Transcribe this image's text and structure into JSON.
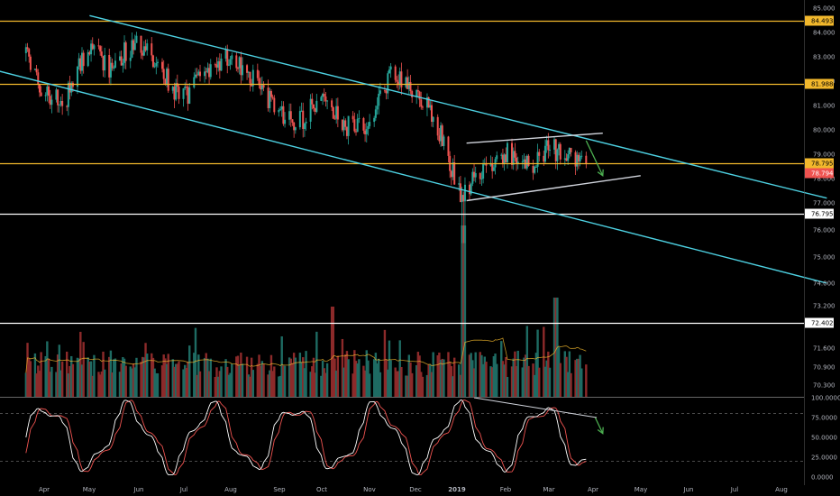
{
  "chart_data": {
    "type": "candlestick",
    "x_axis": {
      "labels": [
        "Apr",
        "May",
        "Jun",
        "Jul",
        "Aug",
        "Sep",
        "Oct",
        "Nov",
        "Dec",
        "2019",
        "Feb",
        "Mar",
        "Apr",
        "May",
        "Jun",
        "Jul",
        "Aug"
      ]
    },
    "price_axis": {
      "ticks": [
        "85.000",
        "84.000",
        "83.000",
        "82.000",
        "81.000",
        "80.000",
        "79.000",
        "78.000",
        "77.000",
        "76.000",
        "75.000",
        "74.000",
        "73.200",
        "71.600",
        "70.900",
        "70.300"
      ],
      "ylim": [
        70.3,
        85.0
      ]
    },
    "oscillator_axis": {
      "ticks": [
        "100.0000",
        "75.0000",
        "50.0000",
        "25.0000",
        "0.0000"
      ],
      "ylim": [
        0,
        100
      ]
    },
    "horizontal_levels": [
      {
        "label": "84.493",
        "value": 84.493,
        "color": "#f2b82c"
      },
      {
        "label": "81.988",
        "value": 81.988,
        "color": "#f2b82c"
      },
      {
        "label": "78.795",
        "value": 78.795,
        "color": "#f2b82c"
      },
      {
        "label": "76.795",
        "value": 76.795,
        "color": "#ffffff"
      },
      {
        "label": "72.402",
        "value": 72.402,
        "color": "#ffffff"
      }
    ],
    "last_price_tag": {
      "label": "78.794",
      "color": "#ef5350"
    },
    "price_anchors": [
      {
        "x": "Mar 20 2018",
        "y": 83.2
      },
      {
        "x": "Apr 1 2018",
        "y": 81.6
      },
      {
        "x": "Apr 15 2018",
        "y": 81.3
      },
      {
        "x": "May 1 2018",
        "y": 83.6
      },
      {
        "x": "May 15 2018",
        "y": 82.6
      },
      {
        "x": "Jun 1 2018",
        "y": 83.7
      },
      {
        "x": "Jun 15 2018",
        "y": 82.8
      },
      {
        "x": "Jul 1 2018",
        "y": 81.3
      },
      {
        "x": "Jul 15 2018",
        "y": 82.3
      },
      {
        "x": "Aug 1 2018",
        "y": 83.0
      },
      {
        "x": "Aug 15 2018",
        "y": 82.3
      },
      {
        "x": "Sep 1 2018",
        "y": 81.0
      },
      {
        "x": "Sep 15 2018",
        "y": 80.3
      },
      {
        "x": "Oct 1 2018",
        "y": 81.5
      },
      {
        "x": "Oct 15 2018",
        "y": 80.3
      },
      {
        "x": "Nov 1 2018",
        "y": 80.2
      },
      {
        "x": "Nov 15 2018",
        "y": 82.3
      },
      {
        "x": "Dec 1 2018",
        "y": 81.8
      },
      {
        "x": "Dec 15 2018",
        "y": 80.6
      },
      {
        "x": "Jan 1 2019",
        "y": 77.6
      },
      {
        "x": "Jan 15 2019",
        "y": 78.4
      },
      {
        "x": "Feb 1 2019",
        "y": 79.2
      },
      {
        "x": "Feb 15 2019",
        "y": 78.6
      },
      {
        "x": "Mar 1 2019",
        "y": 79.4
      },
      {
        "x": "Mar 15 2019",
        "y": 79.0
      },
      {
        "x": "Mar 25 2019",
        "y": 78.8
      }
    ],
    "trendlines": [
      {
        "name": "channel-upper",
        "color": "#4dd0e1",
        "points": [
          {
            "x": "May 1 2018",
            "y": 84.7
          },
          {
            "x": "Aug 31 2019",
            "y": 77.4
          }
        ]
      },
      {
        "name": "channel-lower",
        "color": "#4dd0e1",
        "points": [
          {
            "x": "Mar 1 2018",
            "y": 82.5
          },
          {
            "x": "Aug 31 2019",
            "y": 74.0
          }
        ]
      },
      {
        "name": "flag-upper",
        "color": "#d1d4dc",
        "points": [
          {
            "x": "Jan 5 2019",
            "y": 79.6
          },
          {
            "x": "Apr 5 2019",
            "y": 80.0
          }
        ]
      },
      {
        "name": "flag-lower",
        "color": "#d1d4dc",
        "points": [
          {
            "x": "Jan 5 2019",
            "y": 77.3
          },
          {
            "x": "Apr 30 2019",
            "y": 78.3
          }
        ]
      }
    ],
    "oscillator_trendline": {
      "color": "#d1d4dc",
      "points": [
        {
          "x": "Jan 10 2019",
          "y": 100
        },
        {
          "x": "Apr 1 2019",
          "y": 75
        }
      ]
    },
    "annotations": [
      {
        "type": "arrow",
        "color": "#4caf50",
        "pane": "price",
        "from": {
          "x": "Mar 25 2019",
          "y": 79.7
        },
        "to": {
          "x": "Apr 5 2019",
          "y": 78.3
        }
      },
      {
        "type": "arrow",
        "color": "#4caf50",
        "pane": "oscillator",
        "from": {
          "x": "Mar 31 2019",
          "y": 75
        },
        "to": {
          "x": "Apr 5 2019",
          "y": 55
        }
      }
    ],
    "oscillator_levels": [
      20,
      80
    ],
    "series": [
      {
        "name": "",
        "pane": "price",
        "kind": "candles",
        "up_color": "#26a69a",
        "down_color": "#ef5350"
      },
      {
        "name": "",
        "pane": "price",
        "kind": "volume-bars",
        "up_color": "#1e6b63",
        "down_color": "#8c2a2a"
      },
      {
        "name": "",
        "pane": "price",
        "kind": "volume-ma",
        "color": "#f2b82c"
      },
      {
        "name": "",
        "pane": "oscillator",
        "kind": "line",
        "color": "#ffffff"
      },
      {
        "name": "",
        "pane": "oscillator",
        "kind": "line",
        "color": "#ef5350"
      }
    ],
    "grid": false,
    "legend": "none"
  }
}
